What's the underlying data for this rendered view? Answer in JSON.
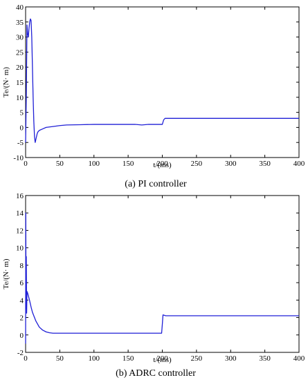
{
  "chart_data": [
    {
      "type": "line",
      "caption": "(a) PI controller",
      "xlabel": "t/(ms)",
      "ylabel": "Te/(N· m)",
      "xlim": [
        0,
        400
      ],
      "ylim": [
        -10,
        40
      ],
      "xticks": [
        0,
        50,
        100,
        150,
        200,
        250,
        300,
        350,
        400
      ],
      "yticks": [
        -10,
        -5,
        0,
        5,
        10,
        15,
        20,
        25,
        30,
        35,
        40
      ],
      "grid": false,
      "line_color": "#1f1fd6",
      "series": [
        {
          "x": [
            0,
            1,
            2,
            3,
            4,
            5,
            6,
            7,
            8,
            9,
            10,
            11,
            12,
            13,
            14,
            15,
            16,
            17,
            18,
            20,
            25,
            30,
            40,
            50,
            60,
            80,
            100,
            120,
            140,
            160,
            170,
            180,
            190,
            200,
            202,
            204,
            206,
            210,
            220,
            250,
            300,
            350,
            400
          ],
          "y": [
            -5,
            10,
            34,
            31,
            30,
            33,
            35,
            36,
            35.5,
            30,
            20,
            10,
            2,
            -3,
            -5,
            -4,
            -3,
            -2,
            -1.5,
            -1,
            -0.5,
            0,
            0.3,
            0.6,
            0.8,
            0.9,
            1.0,
            1.0,
            1.0,
            1.0,
            0.8,
            1.0,
            1.0,
            1.0,
            2.5,
            3.0,
            3.0,
            3.0,
            3.0,
            3.0,
            3.0,
            3.0,
            3.0
          ]
        }
      ]
    },
    {
      "type": "line",
      "caption": "(b) ADRC controller",
      "xlabel": "t/(ms)",
      "ylabel": "Te/(N· m)",
      "xlim": [
        0,
        400
      ],
      "ylim": [
        -2,
        16
      ],
      "xticks": [
        0,
        50,
        100,
        150,
        200,
        250,
        300,
        350,
        400
      ],
      "yticks": [
        -2,
        0,
        2,
        4,
        6,
        8,
        10,
        12,
        14,
        16
      ],
      "grid": false,
      "line_color": "#1f1fd6",
      "series": [
        {
          "x": [
            0,
            0.3,
            0.6,
            1,
            1.5,
            2,
            3,
            4,
            6,
            8,
            10,
            15,
            20,
            25,
            30,
            35,
            40,
            50,
            60,
            80,
            100,
            150,
            199,
            200,
            201,
            205,
            250,
            300,
            350,
            400
          ],
          "y": [
            -1,
            14,
            3,
            9,
            2.5,
            5,
            4.8,
            4.5,
            3.9,
            3.2,
            2.6,
            1.6,
            0.9,
            0.55,
            0.35,
            0.25,
            0.2,
            0.2,
            0.2,
            0.2,
            0.2,
            0.2,
            0.2,
            1.2,
            2.3,
            2.2,
            2.2,
            2.2,
            2.2,
            2.2
          ]
        }
      ]
    }
  ]
}
